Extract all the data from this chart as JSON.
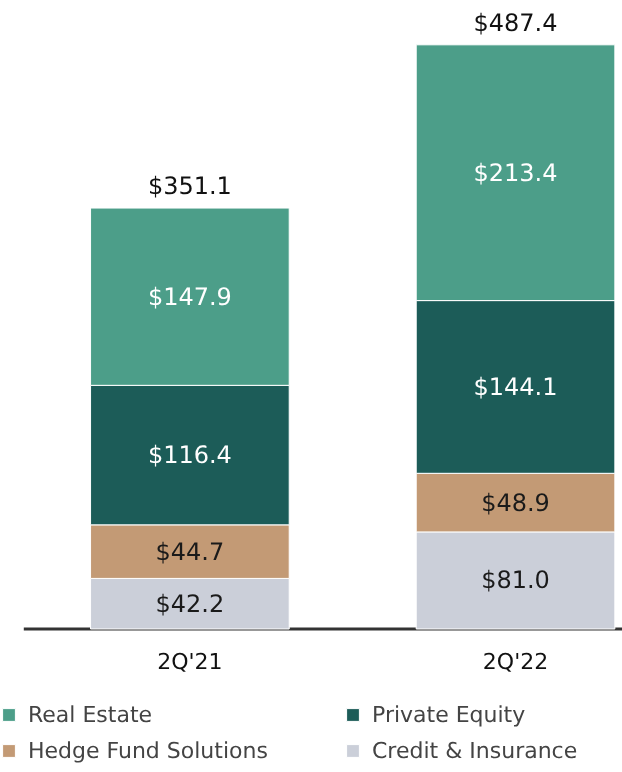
{
  "chart_data": {
    "type": "bar",
    "stacked": true,
    "categories": [
      "2Q'21",
      "2Q'22"
    ],
    "series": [
      {
        "name": "Credit & Insurance",
        "color": "#cbcfd9",
        "values": [
          42.2,
          81.0
        ],
        "value_labels": [
          "$42.2",
          "$81.0"
        ]
      },
      {
        "name": "Hedge Fund Solutions",
        "color": "#c39a75",
        "values": [
          44.7,
          48.9
        ],
        "value_labels": [
          "$44.7",
          "$48.9"
        ]
      },
      {
        "name": "Private Equity",
        "color": "#1c5c58",
        "values": [
          116.4,
          144.1
        ],
        "value_labels": [
          "$116.4",
          "$144.1"
        ]
      },
      {
        "name": "Real Estate",
        "color": "#4c9e89",
        "values": [
          147.9,
          213.4
        ],
        "value_labels": [
          "$147.9",
          "$213.4"
        ]
      }
    ],
    "totals": [
      "$351.1",
      "$487.4"
    ],
    "legend": "bottom"
  }
}
